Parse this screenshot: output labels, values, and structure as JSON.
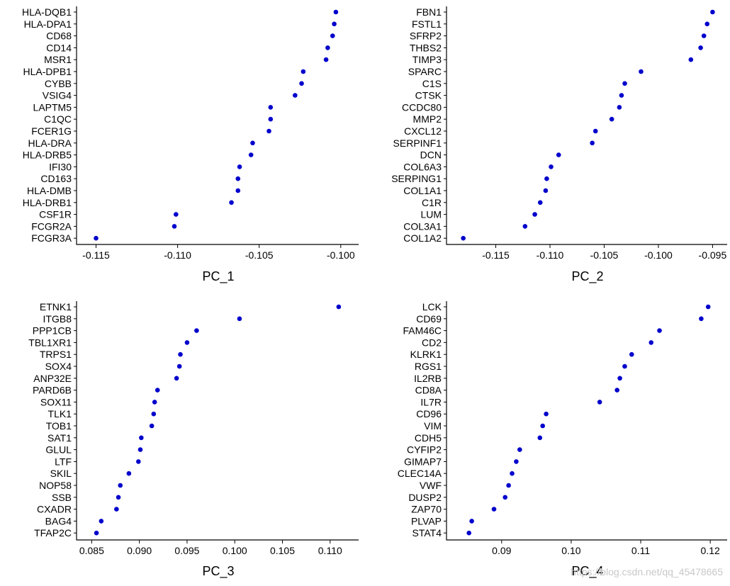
{
  "colors": {
    "point": "#0000cc",
    "axis": "#000000",
    "text": "#000000"
  },
  "watermark": "https://blog.csdn.net/qq_45478665",
  "chart_data": [
    {
      "type": "scatter",
      "xlabel": "PC_1",
      "xlim": [
        -0.1155,
        -0.0996
      ],
      "xticks": [
        -0.115,
        -0.11,
        -0.105,
        -0.1
      ],
      "xtick_labels": [
        "-0.115",
        "-0.110",
        "-0.105",
        "-0.100"
      ],
      "genes": [
        "HLA-DQB1",
        "HLA-DPA1",
        "CD68",
        "CD14",
        "MSR1",
        "HLA-DPB1",
        "CYBB",
        "VSIG4",
        "LAPTM5",
        "C1QC",
        "FCER1G",
        "HLA-DRA",
        "HLA-DRB5",
        "IFI30",
        "CD163",
        "HLA-DMB",
        "HLA-DRB1",
        "CSF1R",
        "FCGR2A",
        "FCGR3A"
      ],
      "values": [
        -0.1003,
        -0.1004,
        -0.1005,
        -0.1008,
        -0.1009,
        -0.1023,
        -0.1024,
        -0.1028,
        -0.1043,
        -0.1043,
        -0.1044,
        -0.1054,
        -0.1055,
        -0.1062,
        -0.1063,
        -0.1063,
        -0.1067,
        -0.1101,
        -0.1102,
        -0.115
      ]
    },
    {
      "type": "scatter",
      "xlabel": "PC_2",
      "xlim": [
        -0.1185,
        -0.0947
      ],
      "xticks": [
        -0.115,
        -0.11,
        -0.105,
        -0.1,
        -0.095
      ],
      "xtick_labels": [
        "-0.115",
        "-0.110",
        "-0.105",
        "-0.100",
        "-0.095"
      ],
      "genes": [
        "FBN1",
        "FSTL1",
        "SFRP2",
        "THBS2",
        "TIMP3",
        "SPARC",
        "C1S",
        "CTSK",
        "CCDC80",
        "MMP2",
        "CXCL12",
        "SERPINF1",
        "DCN",
        "COL6A3",
        "SERPING1",
        "COL1A1",
        "C1R",
        "LUM",
        "COL3A1",
        "COL1A2"
      ],
      "values": [
        -0.095,
        -0.0955,
        -0.0958,
        -0.0961,
        -0.097,
        -0.1016,
        -0.1031,
        -0.1034,
        -0.1036,
        -0.1043,
        -0.1058,
        -0.1061,
        -0.1092,
        -0.1099,
        -0.1103,
        -0.1104,
        -0.1109,
        -0.1114,
        -0.1123,
        -0.118
      ]
    },
    {
      "type": "scatter",
      "xlabel": "PC_3",
      "xlim": [
        0.0846,
        0.1118
      ],
      "xticks": [
        0.085,
        0.09,
        0.095,
        0.1,
        0.105,
        0.11
      ],
      "xtick_labels": [
        "0.085",
        "0.090",
        "0.095",
        "0.100",
        "0.105",
        "0.110"
      ],
      "genes": [
        "ETNK1",
        "ITGB8",
        "PPP1CB",
        "TBL1XR1",
        "TRPS1",
        "SOX4",
        "ANP32E",
        "PARD6B",
        "SOX11",
        "TLK1",
        "TOB1",
        "SAT1",
        "GLUL",
        "LTF",
        "SKIL",
        "NOP58",
        "SSB",
        "CXADR",
        "BAG4",
        "TFAP2C"
      ],
      "values": [
        0.1109,
        0.1005,
        0.096,
        0.095,
        0.0943,
        0.0942,
        0.0939,
        0.0919,
        0.0916,
        0.0915,
        0.0913,
        0.0902,
        0.0901,
        0.0899,
        0.0889,
        0.088,
        0.0878,
        0.0876,
        0.086,
        0.0855
      ]
    },
    {
      "type": "scatter",
      "xlabel": "PC_4",
      "xlim": [
        0.0837,
        0.1208
      ],
      "xticks": [
        0.09,
        0.1,
        0.11,
        0.12
      ],
      "xtick_labels": [
        "0.09",
        "0.10",
        "0.11",
        "0.12"
      ],
      "genes": [
        "LCK",
        "CD69",
        "FAM46C",
        "CD2",
        "KLRK1",
        "RGS1",
        "IL2RB",
        "CD8A",
        "IL7R",
        "CD96",
        "VIM",
        "CDH5",
        "CYFIP2",
        "GIMAP7",
        "CLEC14A",
        "VWF",
        "DUSP2",
        "ZAP70",
        "PLVAP",
        "STAT4"
      ],
      "values": [
        0.1197,
        0.1187,
        0.1127,
        0.1115,
        0.1087,
        0.1077,
        0.107,
        0.1066,
        0.1041,
        0.0964,
        0.0959,
        0.0955,
        0.0926,
        0.0921,
        0.0915,
        0.091,
        0.0905,
        0.0889,
        0.0857,
        0.0853
      ]
    }
  ]
}
